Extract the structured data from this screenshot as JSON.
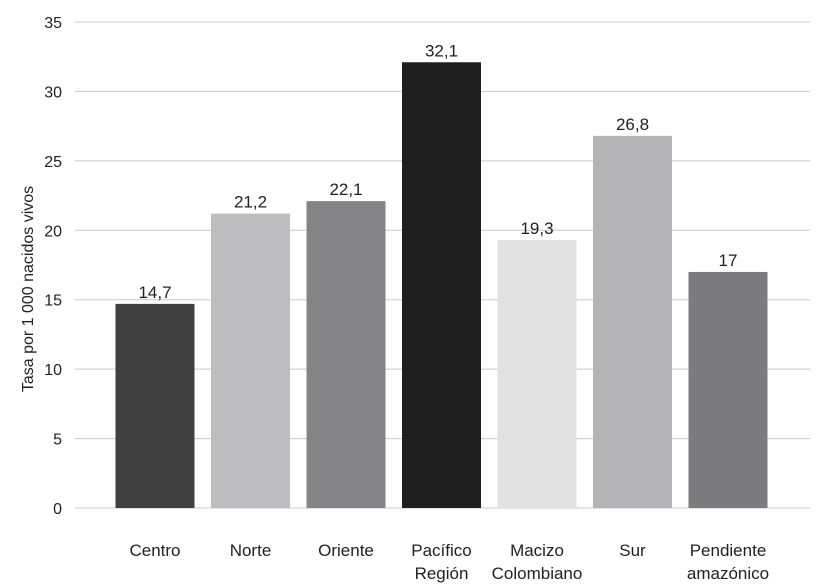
{
  "chart_data": {
    "type": "bar",
    "ylabel": "Tasa por 1 000 nacidos vivos",
    "ylim": [
      0,
      35
    ],
    "yticks": [
      0,
      5,
      10,
      15,
      20,
      25,
      30,
      35
    ],
    "grid": true,
    "categories": [
      [
        "Centro"
      ],
      [
        "Norte"
      ],
      [
        "Oriente"
      ],
      [
        "Pacífico",
        "Región"
      ],
      [
        "Macizo",
        "Colombiano"
      ],
      [
        "Sur"
      ],
      [
        "Pendiente",
        "amazónico"
      ]
    ],
    "values": [
      14.7,
      21.2,
      22.1,
      32.1,
      19.3,
      26.8,
      17
    ],
    "value_labels": [
      "14,7",
      "21,2",
      "22,1",
      "32,1",
      "19,3",
      "26,8",
      "17"
    ],
    "colors": [
      "#404040",
      "#bdbdbf",
      "#848487",
      "#1f1e1f",
      "#e1e1e2",
      "#b4b4b6",
      "#7b7b7e"
    ]
  }
}
